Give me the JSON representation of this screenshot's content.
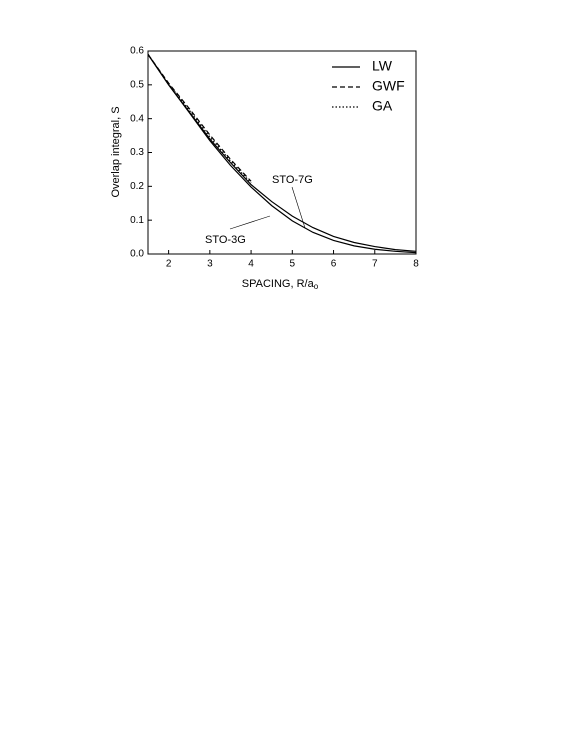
{
  "chart_data": {
    "type": "line",
    "xlabel": "SPACING, R/a",
    "xlabel_sub": "o",
    "ylabel": "Overlap integral,  S",
    "x": [
      1.5,
      2,
      2.5,
      3,
      3.5,
      4,
      4.5,
      5,
      5.5,
      6,
      6.5,
      7,
      7.5,
      8
    ],
    "series": [
      {
        "name": "LW",
        "color": "#000000",
        "dash": "solid",
        "values": [
          0.59,
          0.5,
          0.42,
          0.34,
          0.27,
          0.205,
          0.155,
          0.112,
          0.078,
          0.052,
          0.034,
          0.022,
          0.013,
          0.008
        ]
      },
      {
        "name": "GWF",
        "color": "#000000",
        "dash": "dashed",
        "values": [
          0.59,
          0.505,
          0.43,
          0.352,
          0.28,
          0.215,
          null,
          null,
          null,
          null,
          null,
          null,
          null,
          null
        ]
      },
      {
        "name": "GA",
        "color": "#000000",
        "dash": "dotted",
        "values": [
          0.59,
          0.503,
          0.425,
          0.346,
          0.275,
          0.21,
          null,
          null,
          null,
          null,
          null,
          null,
          null,
          null
        ]
      },
      {
        "color": "#000000",
        "dash": "solid",
        "values": [
          0.59,
          0.5,
          0.418,
          0.335,
          0.262,
          0.198,
          0.143,
          0.098,
          0.064,
          0.04,
          0.024,
          0.014,
          0.008,
          0.004
        ]
      }
    ],
    "annotations": [
      {
        "text": "STO-7G"
      },
      {
        "text": "STO-3G"
      }
    ],
    "xlim": [
      1.5,
      8
    ],
    "xticks": [
      2,
      3,
      4,
      5,
      6,
      7,
      8
    ],
    "ylim": [
      0,
      0.6
    ],
    "yticks": [
      {
        "value": 0,
        "label": "0.0"
      },
      0.1,
      0.2,
      0.3,
      0.4,
      0.5,
      0.6
    ],
    "legend": "upper right",
    "grid": false
  }
}
